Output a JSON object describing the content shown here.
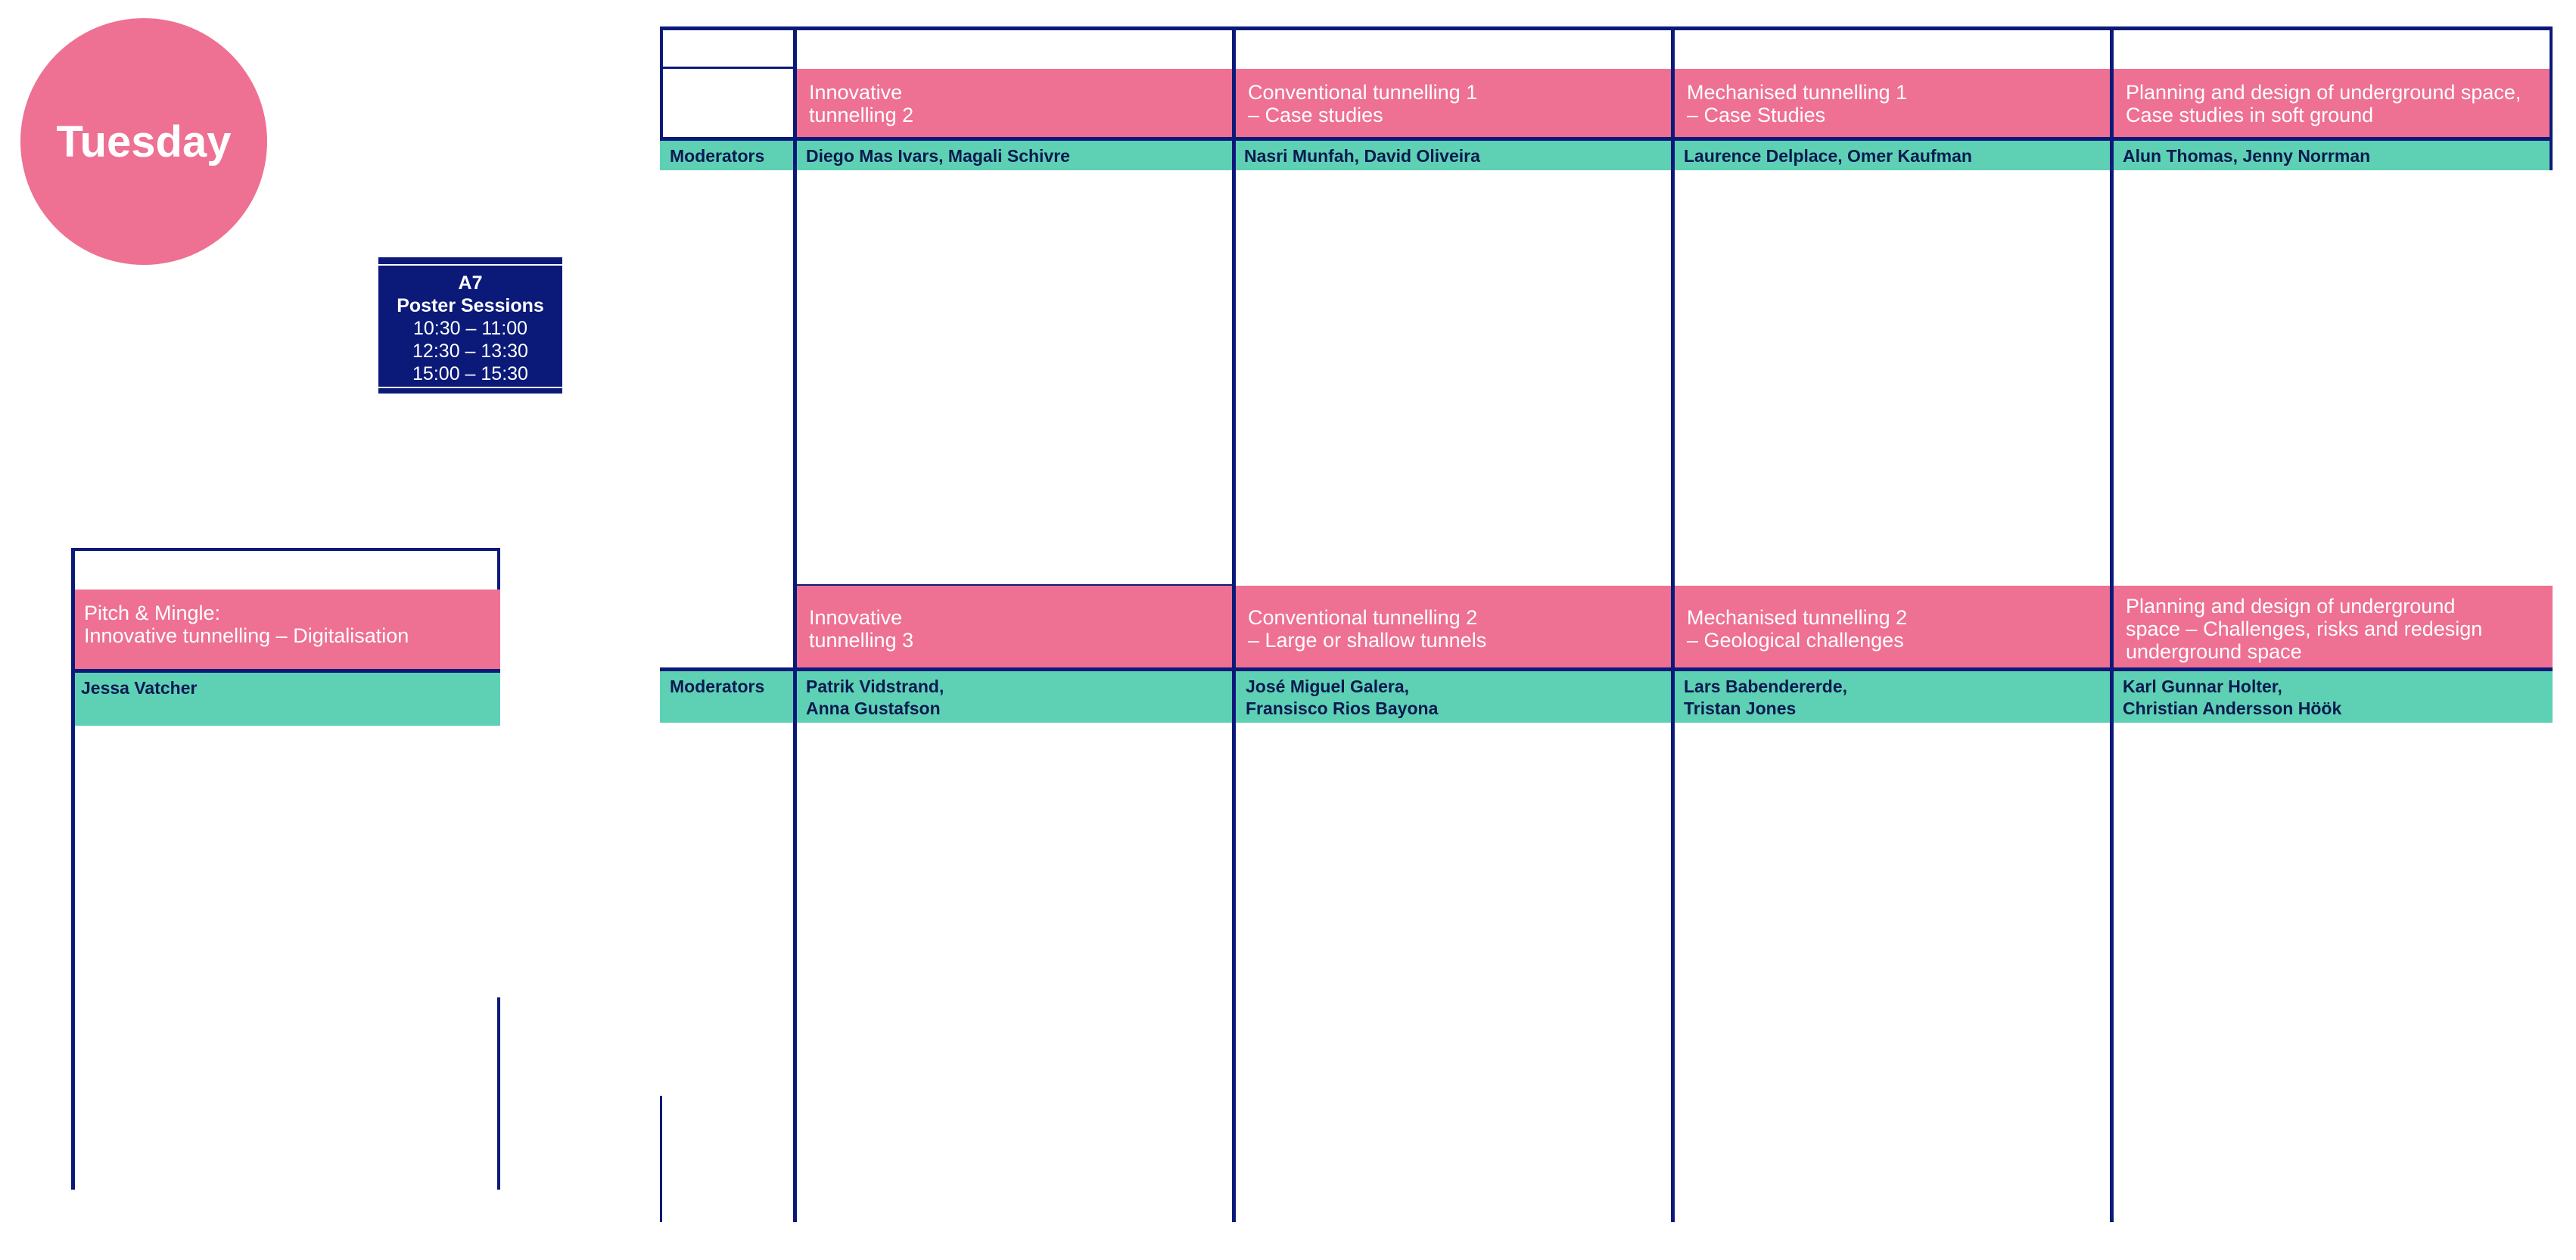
{
  "day": "Tuesday",
  "poster": {
    "room": "A7",
    "title": "Poster Sessions",
    "times": [
      "10:30 – 11:00",
      "12:30 – 13:30",
      "15:00 – 15:30"
    ]
  },
  "pitch": {
    "title": "Pitch & Mingle:\nInnovative tunnelling – Digitalisation",
    "moderator": "Jessa Vatcher"
  },
  "moderators_label": "Moderators",
  "block1": [
    {
      "title": "Innovative\ntunnelling 2",
      "moderators": "Diego Mas Ivars, Magali Schivre"
    },
    {
      "title": "Conventional tunnelling 1\n– Case studies",
      "moderators": "Nasri Munfah, David Oliveira"
    },
    {
      "title": "Mechanised tunnelling 1\n– Case Studies",
      "moderators": "Laurence Delplace, Omer Kaufman"
    },
    {
      "title": "Planning and design of underground space,\nCase studies in soft ground",
      "moderators": "Alun Thomas, Jenny Norrman"
    }
  ],
  "block2": [
    {
      "title": "Innovative\ntunnelling 3",
      "moderators": "Patrik Vidstrand,\nAnna Gustafson"
    },
    {
      "title": "Conventional tunnelling 2\n– Large or shallow tunnels",
      "moderators": "José Miguel Galera,\nFransisco Rios Bayona"
    },
    {
      "title": "Mechanised tunnelling 2\n– Geological challenges",
      "moderators": "Lars Babendererde,\nTristan Jones"
    },
    {
      "title": "Planning and design of underground\nspace – Challenges, risks and redesign\nunderground space",
      "moderators": "Karl Gunnar Holter,\nChristian Andersson Höök"
    }
  ],
  "colors": {
    "navy": "#0b1a78",
    "pink": "#ee7093",
    "teal": "#5ed1b5"
  }
}
